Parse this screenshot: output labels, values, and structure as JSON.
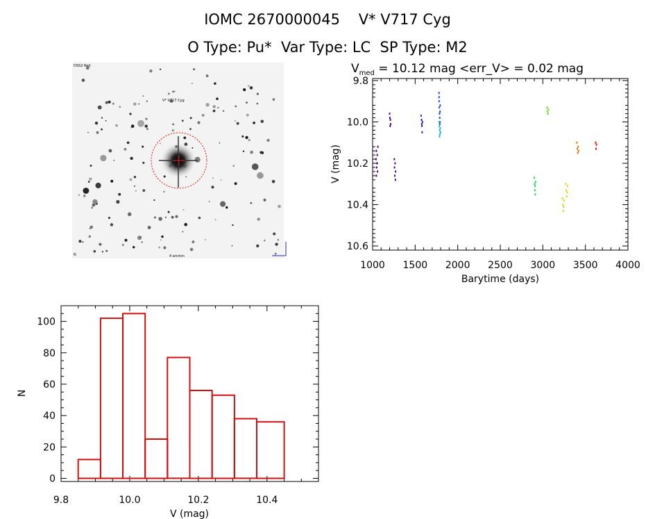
{
  "header": {
    "title_line1": "IOMC 2670000045    V* V717 Cyg",
    "title_line2": "O Type: Pu*  Var Type: LC  SP Type: M2"
  },
  "finder": {
    "label_top_left": "DSS2 Red",
    "label_target": "V* V717 Cyg",
    "label_bottom": "4 arcmin",
    "label_bottom_left": "N",
    "label_bottom_right": "E"
  },
  "chart_data": [
    {
      "type": "scatter",
      "title_prefix": "V",
      "title_sub": "med",
      "title_rest": " = 10.12 mag <err_V> = 0.02 mag",
      "xlabel": "Barytime (days)",
      "ylabel": "V (mag)",
      "xlim": [
        1000,
        4000
      ],
      "ylim": [
        10.62,
        9.79
      ],
      "xticks": [
        1000,
        1500,
        2000,
        2500,
        3000,
        3500,
        4000
      ],
      "xtick_labels": [
        "1000",
        "1500",
        "2000",
        "2500",
        "3000",
        "3500",
        "4000"
      ],
      "yticks": [
        9.8,
        10.0,
        10.2,
        10.4,
        10.6
      ],
      "ytick_labels": [
        "9.8",
        "10.0",
        "10.2",
        "10.4",
        "10.6"
      ],
      "series": [
        {
          "name": "season1",
          "color": "#4b0082",
          "points": [
            [
              1040,
              10.18
            ],
            [
              1045,
              10.14
            ],
            [
              1048,
              10.22
            ],
            [
              1052,
              10.2
            ],
            [
              1055,
              10.16
            ],
            [
              1058,
              10.24
            ],
            [
              1062,
              10.12
            ],
            [
              1044,
              10.26
            ]
          ]
        },
        {
          "name": "season2",
          "color": "#5a0a9a",
          "points": [
            [
              1200,
              9.96
            ],
            [
              1203,
              9.98
            ],
            [
              1206,
              10.02
            ],
            [
              1209,
              9.99
            ],
            [
              1212,
              10.01
            ]
          ]
        },
        {
          "name": "season3",
          "color": "#3b0fa8",
          "points": [
            [
              1255,
              10.18
            ],
            [
              1258,
              10.22
            ],
            [
              1261,
              10.26
            ],
            [
              1264,
              10.2
            ],
            [
              1267,
              10.28
            ],
            [
              1270,
              10.24
            ]
          ]
        },
        {
          "name": "season4",
          "color": "#2a2ab4",
          "points": [
            [
              1570,
              9.97
            ],
            [
              1575,
              9.99
            ],
            [
              1580,
              10.02
            ],
            [
              1585,
              10.0
            ],
            [
              1582,
              10.05
            ],
            [
              1578,
              10.01
            ]
          ]
        },
        {
          "name": "season5",
          "color": "#1a4ed8",
          "points": [
            [
              1780,
              9.86
            ],
            [
              1782,
              9.9
            ],
            [
              1784,
              9.93
            ],
            [
              1786,
              9.96
            ],
            [
              1788,
              9.98
            ],
            [
              1790,
              10.0
            ],
            [
              1792,
              9.95
            ],
            [
              1794,
              9.92
            ],
            [
              1781,
              9.88
            ],
            [
              1789,
              10.01
            ]
          ]
        },
        {
          "name": "season6",
          "color": "#22b8e0",
          "points": [
            [
              1782,
              10.0
            ],
            [
              1785,
              10.02
            ],
            [
              1788,
              10.04
            ],
            [
              1791,
              10.06
            ],
            [
              1794,
              10.03
            ],
            [
              1797,
              10.05
            ],
            [
              1786,
              10.07
            ]
          ]
        },
        {
          "name": "season7",
          "color": "#2fd45a",
          "points": [
            [
              2900,
              10.27
            ],
            [
              2903,
              10.3
            ],
            [
              2906,
              10.33
            ],
            [
              2909,
              10.31
            ],
            [
              2912,
              10.35
            ],
            [
              2915,
              10.29
            ]
          ]
        },
        {
          "name": "season8",
          "color": "#6ee02a",
          "points": [
            [
              3050,
              9.93
            ],
            [
              3055,
              9.95
            ],
            [
              3060,
              9.96
            ],
            [
              3065,
              9.94
            ]
          ]
        },
        {
          "name": "season9",
          "color": "#c8e020",
          "points": [
            [
              3230,
              10.37
            ],
            [
              3235,
              10.4
            ],
            [
              3240,
              10.43
            ],
            [
              3245,
              10.41
            ],
            [
              3250,
              10.38
            ]
          ]
        },
        {
          "name": "season10",
          "color": "#f0d020",
          "points": [
            [
              3270,
              10.3
            ],
            [
              3275,
              10.33
            ],
            [
              3280,
              10.36
            ],
            [
              3285,
              10.34
            ],
            [
              3290,
              10.31
            ]
          ]
        },
        {
          "name": "season11",
          "color": "#e07a10",
          "points": [
            [
              3400,
              10.1
            ],
            [
              3405,
              10.13
            ],
            [
              3410,
              10.15
            ],
            [
              3415,
              10.12
            ],
            [
              3420,
              10.14
            ]
          ]
        },
        {
          "name": "season12",
          "color": "#e02020",
          "points": [
            [
              3620,
              10.1
            ],
            [
              3625,
              10.13
            ],
            [
              3630,
              10.11
            ]
          ]
        }
      ]
    },
    {
      "type": "bar",
      "xlabel": "V (mag)",
      "ylabel": "N",
      "xlim": [
        9.8,
        10.55
      ],
      "ylim": [
        -2,
        110
      ],
      "xticks": [
        9.8,
        10.0,
        10.2,
        10.4
      ],
      "xtick_labels": [
        "9.8",
        "10.0",
        "10.2",
        "10.4"
      ],
      "yticks": [
        0,
        20,
        40,
        60,
        80,
        100
      ],
      "ytick_labels": [
        "0",
        "20",
        "40",
        "60",
        "80",
        "100"
      ],
      "bin_edges": [
        9.85,
        9.915,
        9.98,
        10.045,
        10.11,
        10.175,
        10.24,
        10.305,
        10.37,
        10.45
      ],
      "values": [
        12,
        102,
        105,
        25,
        77,
        56,
        53,
        38,
        36
      ],
      "bar_color": "#d01010"
    }
  ]
}
